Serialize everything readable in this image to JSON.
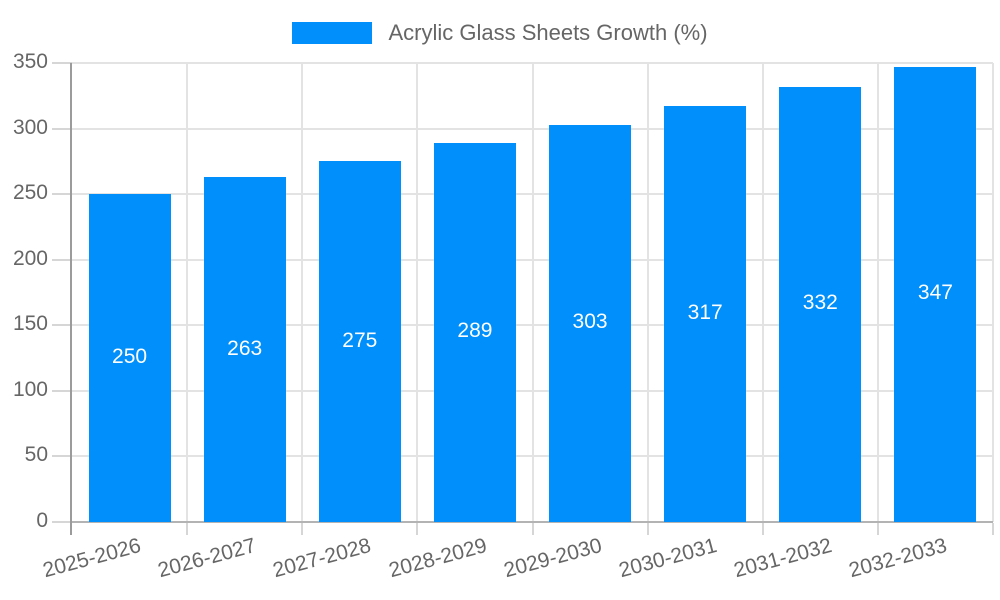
{
  "legend": {
    "label": "Acrylic Glass Sheets Growth (%)"
  },
  "chart_data": {
    "type": "bar",
    "title": "Acrylic Glass Sheets Growth (%)",
    "categories": [
      "2025-2026",
      "2026-2027",
      "2027-2028",
      "2028-2029",
      "2029-2030",
      "2030-2031",
      "2031-2032",
      "2032-2033"
    ],
    "values": [
      250,
      263,
      275,
      289,
      303,
      317,
      332,
      347
    ],
    "series": [
      {
        "name": "Acrylic Glass Sheets Growth (%)",
        "values": [
          250,
          263,
          275,
          289,
          303,
          317,
          332,
          347
        ]
      }
    ],
    "value_labels": [
      "250",
      "263",
      "275",
      "289",
      "303",
      "317",
      "332",
      "347"
    ],
    "xlabel": "",
    "ylabel": "",
    "ylim": [
      0,
      350
    ],
    "yticks": [
      0,
      50,
      100,
      150,
      200,
      250,
      300,
      350
    ],
    "grid": true,
    "legend_position": "top-center",
    "value_label_position": "inside-center"
  },
  "colors": {
    "bar": "#008FFB",
    "grid": "#e3e3e3",
    "tick": "#d6d6d6",
    "axis_y": "#9b9b9b",
    "axis_x": "#b3b3b3",
    "text": "#666666",
    "value_label": "#ffffff",
    "background": "#ffffff"
  }
}
